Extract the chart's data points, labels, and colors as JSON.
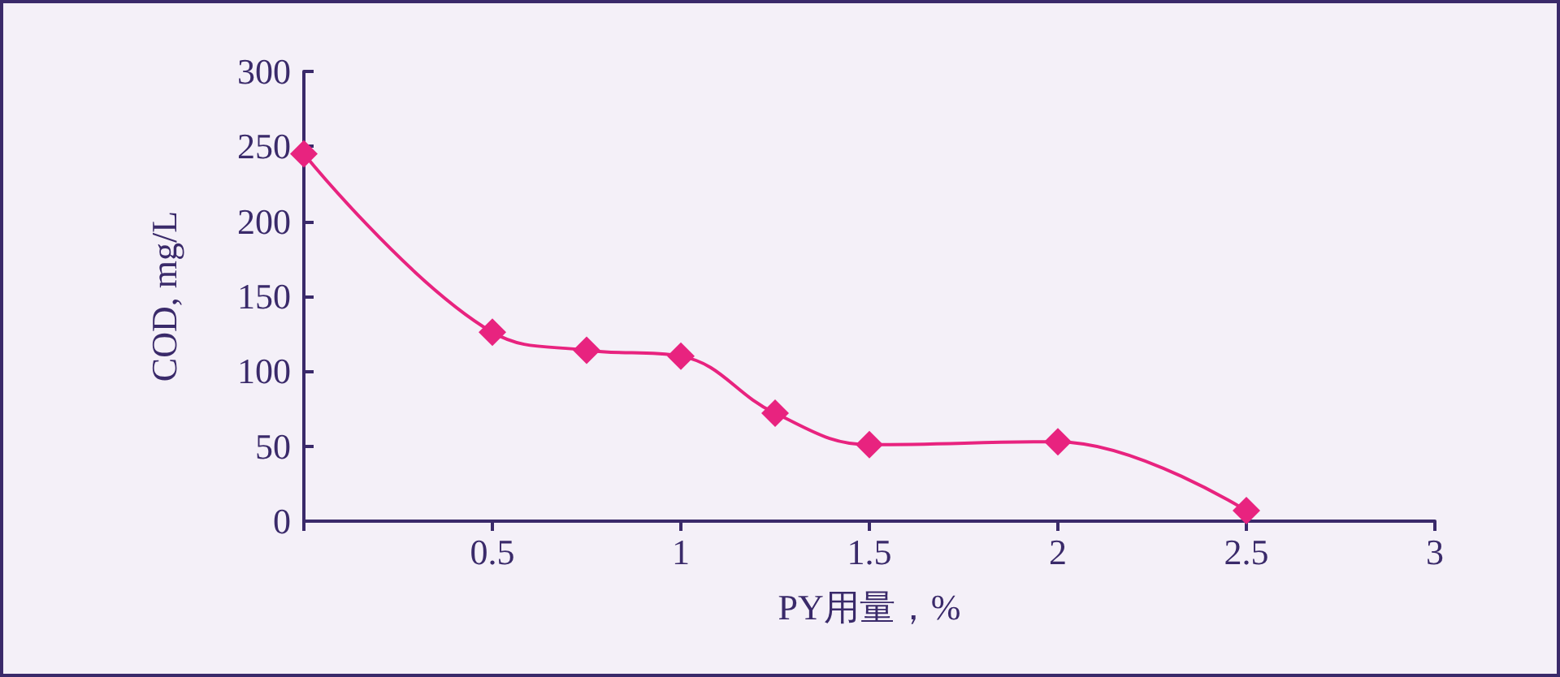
{
  "chart_data": {
    "type": "line",
    "xlabel": "PY用量，%",
    "ylabel": "COD, mg/L",
    "x": [
      0,
      0.5,
      0.75,
      1,
      1.25,
      1.5,
      2,
      2.5
    ],
    "series": [
      {
        "color": "#e8237f",
        "values": [
          245,
          126,
          114,
          110,
          72,
          51,
          53,
          7
        ]
      }
    ],
    "xlim": [
      0,
      3
    ],
    "xticks": [
      {
        "value": 0,
        "label": null
      },
      0.5,
      1,
      1.5,
      2,
      2.5,
      3
    ],
    "ylim": [
      0,
      300
    ],
    "yticks": [
      0,
      50,
      100,
      150,
      200,
      250,
      300
    ],
    "marker": "diamond",
    "line_style": "solid",
    "grid": false
  }
}
